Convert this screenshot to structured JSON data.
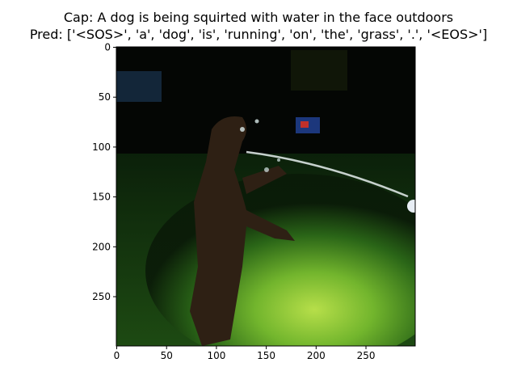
{
  "figure": {
    "caption_line": "Cap: A dog is being squirted with water in the face outdoors",
    "prediction_line": "Pred: ['<SOS>', 'a', 'dog', 'is', 'running', 'on', 'the', 'grass', '.', '<EOS>']"
  },
  "axes": {
    "x_ticks": [
      "0",
      "50",
      "100",
      "150",
      "200",
      "250"
    ],
    "x_tick_values": [
      0,
      50,
      100,
      150,
      200,
      250
    ],
    "y_ticks": [
      "0",
      "50",
      "100",
      "150",
      "200",
      "250"
    ],
    "y_tick_values": [
      0,
      50,
      100,
      150,
      200,
      250
    ],
    "x_range": [
      0,
      299
    ],
    "y_range": [
      0,
      299
    ]
  },
  "image": {
    "subject": "dog jumping at water stream from hose on grass at night",
    "colors": {
      "background": "#050805",
      "grass": "#2f7a1a",
      "highlight": "#b8e83a",
      "dog": "#3a2a18"
    }
  }
}
